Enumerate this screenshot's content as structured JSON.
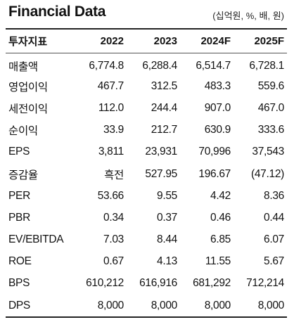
{
  "header": {
    "title": "Financial Data",
    "units": "(십억원, %, 배, 원)"
  },
  "columns": [
    "투자지표",
    "2022",
    "2023",
    "2024F",
    "2025F"
  ],
  "rows": [
    {
      "label": "매출액",
      "values": [
        "6,774.8",
        "6,288.4",
        "6,514.7",
        "6,728.1"
      ]
    },
    {
      "label": "영업이익",
      "values": [
        "467.7",
        "312.5",
        "483.3",
        "559.6"
      ]
    },
    {
      "label": "세전이익",
      "values": [
        "112.0",
        "244.4",
        "907.0",
        "467.0"
      ]
    },
    {
      "label": "순이익",
      "values": [
        "33.9",
        "212.7",
        "630.9",
        "333.6"
      ]
    },
    {
      "label": "EPS",
      "values": [
        "3,811",
        "23,931",
        "70,996",
        "37,543"
      ]
    },
    {
      "label": "증감율",
      "values": [
        "흑전",
        "527.95",
        "196.67",
        "(47.12)"
      ]
    },
    {
      "label": "PER",
      "values": [
        "53.66",
        "9.55",
        "4.42",
        "8.36"
      ]
    },
    {
      "label": "PBR",
      "values": [
        "0.34",
        "0.37",
        "0.46",
        "0.44"
      ]
    },
    {
      "label": "EV/EBITDA",
      "values": [
        "7.03",
        "8.44",
        "6.85",
        "6.07"
      ]
    },
    {
      "label": "ROE",
      "values": [
        "0.67",
        "4.13",
        "11.55",
        "5.67"
      ]
    },
    {
      "label": "BPS",
      "values": [
        "610,212",
        "616,916",
        "681,292",
        "712,214"
      ]
    },
    {
      "label": "DPS",
      "values": [
        "8,000",
        "8,000",
        "8,000",
        "8,000"
      ]
    }
  ]
}
